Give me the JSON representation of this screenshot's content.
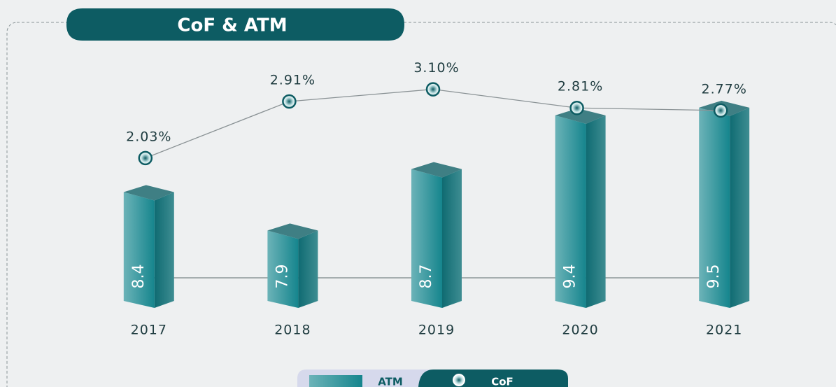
{
  "chart_data": {
    "type": "bar-line",
    "title": "CoF & ATM",
    "categories": [
      "2017",
      "2018",
      "2019",
      "2020",
      "2021"
    ],
    "series": [
      {
        "name": "ATM",
        "type": "bar",
        "color": "#1f8a92",
        "values": [
          8.4,
          7.9,
          8.7,
          9.4,
          9.5
        ]
      },
      {
        "name": "CoF",
        "type": "line",
        "axis": "y2",
        "color": "#0d5c63",
        "values": [
          2.03,
          2.91,
          3.1,
          2.81,
          2.77
        ],
        "value_labels": [
          "2.03%",
          "2.91%",
          "3.10%",
          "2.81%",
          "2.77%"
        ]
      }
    ],
    "ylim": [
      6.8,
      9.9
    ],
    "y2lim": [
      -0.3,
      3.4
    ],
    "legend": "bottom"
  }
}
